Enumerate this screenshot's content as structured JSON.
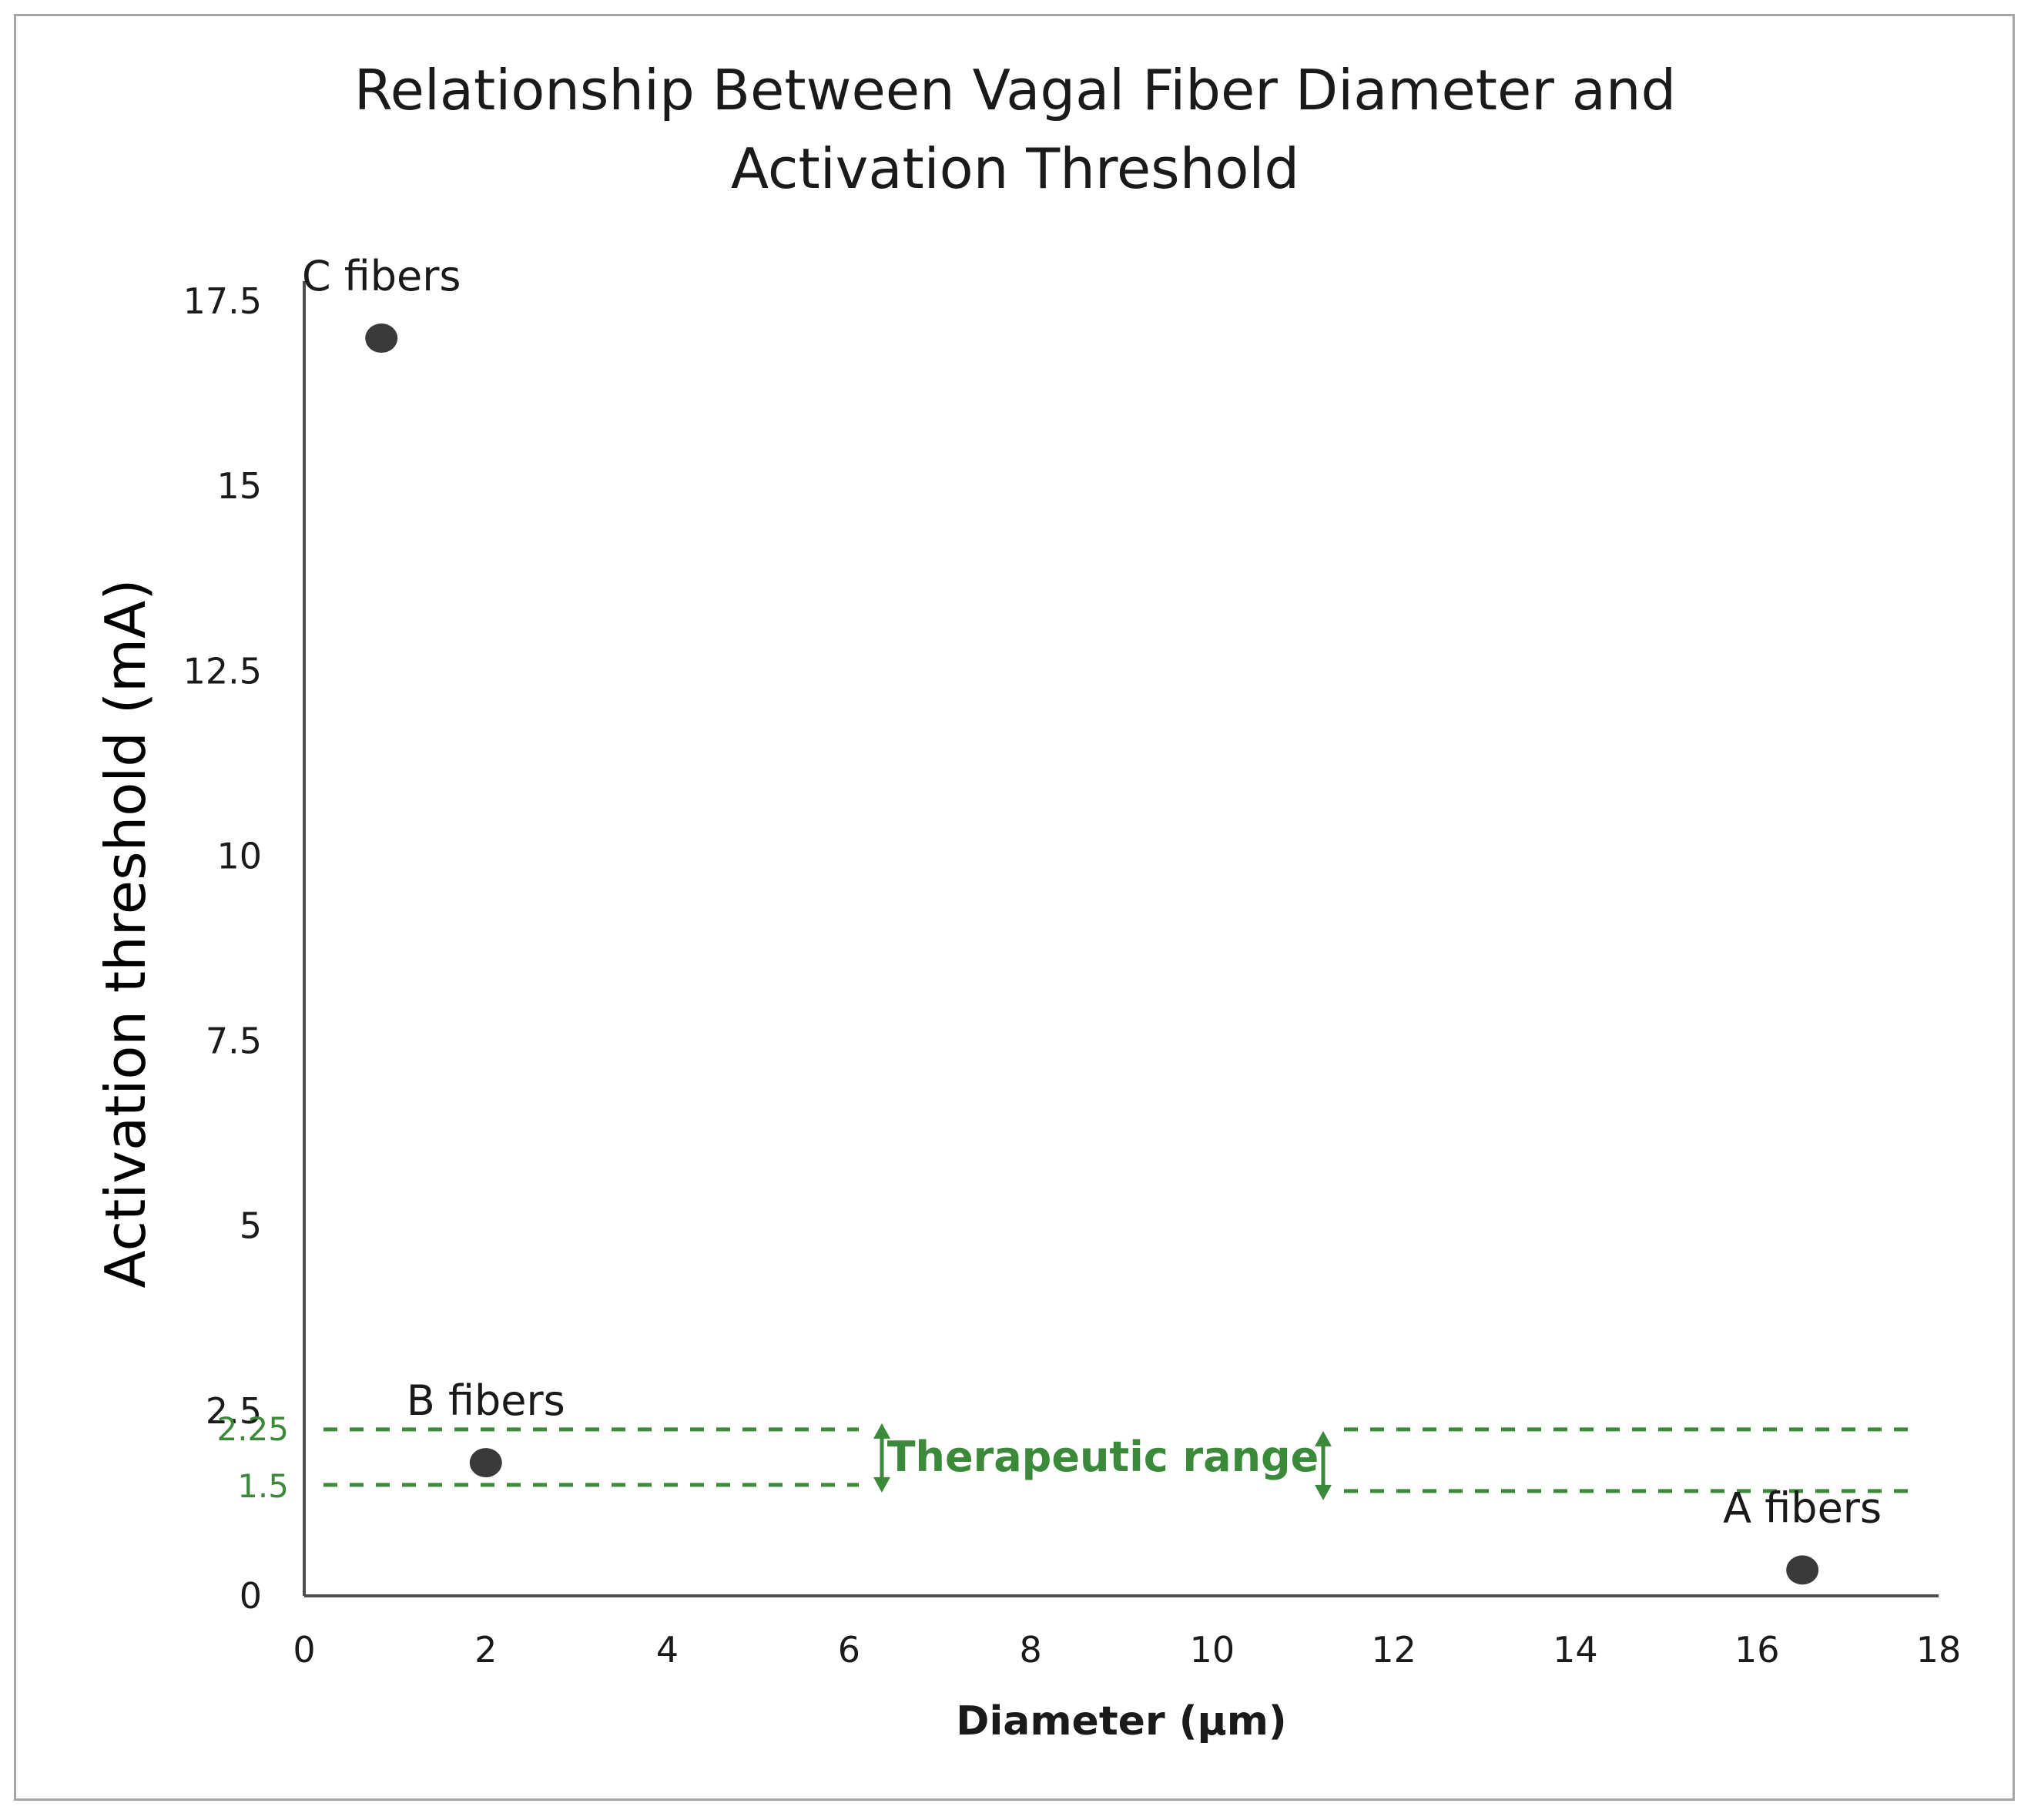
{
  "chart_data": {
    "type": "scatter",
    "title_lines": [
      "Relationship Between Vagal Fiber Diameter and",
      "Activation Threshold"
    ],
    "xlabel": "Diameter (µm)",
    "ylabel": "Activation threshold (mA)",
    "xlim": [
      0,
      18
    ],
    "ylim": [
      0,
      17.5
    ],
    "x_ticks": [
      "0",
      "2",
      "4",
      "6",
      "8",
      "10",
      "12",
      "14",
      "16",
      "18"
    ],
    "y_ticks": [
      "0",
      "2.5",
      "5",
      "7.5",
      "10",
      "12.5",
      "15",
      "17.5"
    ],
    "points": [
      {
        "label": "C fibers",
        "x": 0.85,
        "y": 17.0
      },
      {
        "label": "B fibers",
        "x": 2.0,
        "y": 1.8
      },
      {
        "label": "A fibers",
        "x": 16.5,
        "y": 0.35
      }
    ],
    "therapeutic_range": {
      "label": "Therapeutic range",
      "lower": 1.5,
      "upper": 2.25,
      "lower_label": "1.5",
      "upper_label": "2.25"
    },
    "grid": false,
    "legend": "none",
    "colors": {
      "marker": "#3a3a3a",
      "axis": "#4d4d4d",
      "range": "#3a8a3a"
    }
  }
}
